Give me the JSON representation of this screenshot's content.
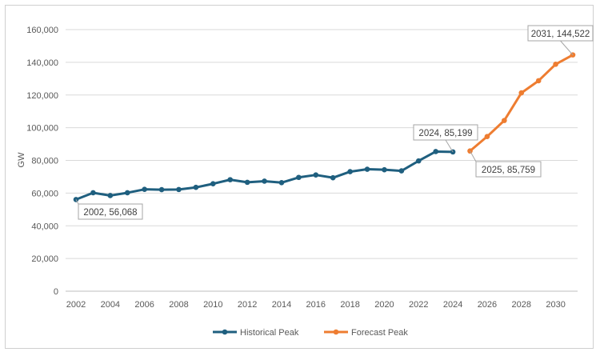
{
  "chart_data": {
    "type": "line",
    "title": "",
    "xlabel": "",
    "ylabel": "GW",
    "ylim": [
      0,
      160000
    ],
    "yticks": [
      0,
      20000,
      40000,
      60000,
      80000,
      100000,
      120000,
      140000,
      160000
    ],
    "ytick_labels": [
      "0",
      "20,000",
      "40,000",
      "60,000",
      "80,000",
      "100,000",
      "120,000",
      "140,000",
      "160,000"
    ],
    "xlim": [
      2002,
      2031
    ],
    "xticks": [
      2002,
      2004,
      2006,
      2008,
      2010,
      2012,
      2014,
      2016,
      2018,
      2020,
      2022,
      2024,
      2026,
      2028,
      2030
    ],
    "grid": true,
    "legend_position": "bottom",
    "series": [
      {
        "name": "Historical Peak",
        "color": "#1f5f7f",
        "x": [
          2002,
          2003,
          2004,
          2005,
          2006,
          2007,
          2008,
          2009,
          2010,
          2011,
          2012,
          2013,
          2014,
          2015,
          2016,
          2017,
          2018,
          2019,
          2020,
          2021,
          2022,
          2023,
          2024
        ],
        "values": [
          56068,
          60200,
          58500,
          60200,
          62300,
          62100,
          62200,
          63500,
          65700,
          68200,
          66600,
          67300,
          66400,
          69600,
          71100,
          69400,
          73100,
          74600,
          74300,
          73600,
          79700,
          85400,
          85199
        ]
      },
      {
        "name": "Forecast Peak",
        "color": "#ee7d31",
        "x": [
          2025,
          2026,
          2027,
          2028,
          2029,
          2030,
          2031
        ],
        "values": [
          85759,
          94600,
          104400,
          121300,
          128700,
          138800,
          144522
        ]
      }
    ],
    "annotations": [
      {
        "text": "2002, 56,068"
      },
      {
        "text": "2024, 85,199"
      },
      {
        "text": "2025, 85,759"
      },
      {
        "text": "2031, 144,522"
      }
    ]
  }
}
